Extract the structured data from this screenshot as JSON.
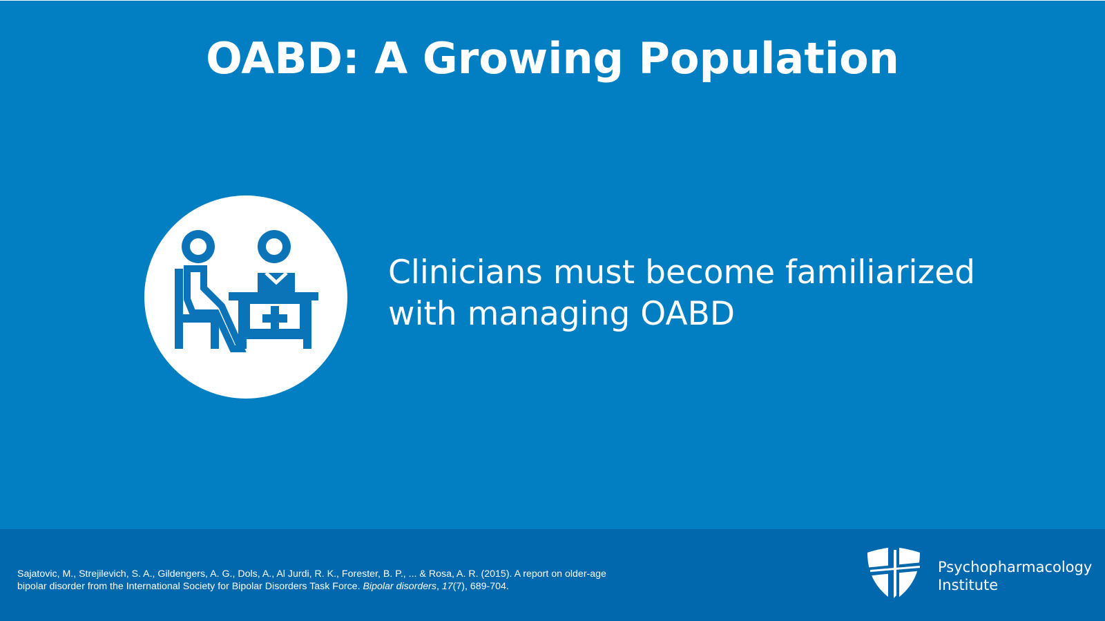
{
  "slide": {
    "title": "OABD: A Growing Population",
    "message": {
      "line1": "Clinicians must become familiarized",
      "line2": "with managing OABD"
    }
  },
  "icons": {
    "main": "clinician-patient-consultation-icon",
    "logo": "shield-cross-icon"
  },
  "footer": {
    "citation": {
      "part1": "Sajatovic, M., Strejilevich, S. A., Gildengers, A. G., Dols, A., Al Jurdi, R. K., Forester, B. P., ... & Rosa, A. R. (2015). A report on older-age",
      "part2": "bipolar disorder from the International Society for Bipolar Disorders Task Force. ",
      "journal": "Bipolar disorders",
      "sep1": ", ",
      "volume": "17",
      "issue_pages": "(7), 689-704."
    },
    "brand": {
      "line1": "Psychopharmacology",
      "line2": "Institute"
    }
  },
  "colors": {
    "background": "#027fc2",
    "footer": "#0268ae",
    "icon": "#0b74b8",
    "text": "#ffffff"
  }
}
